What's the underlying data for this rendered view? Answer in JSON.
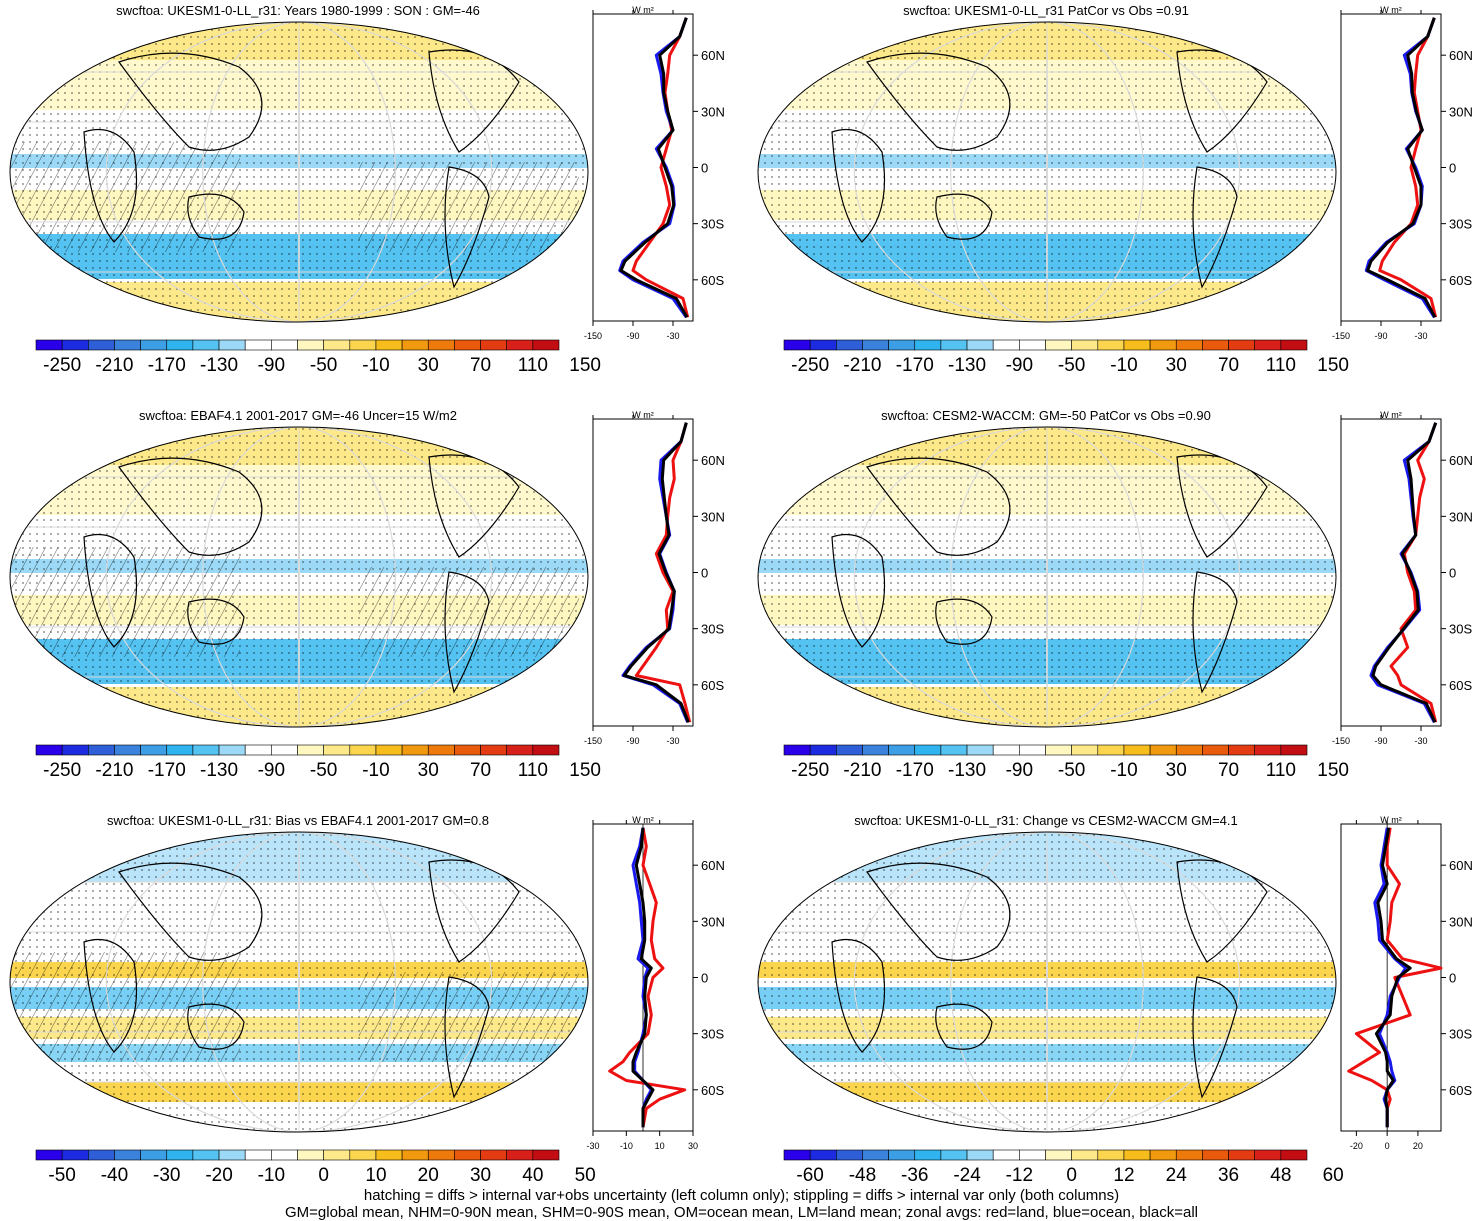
{
  "colors": {
    "scale": [
      "#2a00ea",
      "#1d2be0",
      "#2f5fd8",
      "#3a82db",
      "#3c9fe6",
      "#2fb4f0",
      "#55c3f2",
      "#9bd9f6",
      "#ffffff",
      "#ffffff",
      "#fff7c0",
      "#fde98a",
      "#fcd54e",
      "#f7bd1c",
      "#f29a0f",
      "#ef7a0c",
      "#ea5a0d",
      "#e33b12",
      "#d8201b",
      "#c20d13"
    ],
    "land_curve": "#ee1111",
    "ocean_curve": "#1a1aee",
    "all_curve": "#000000",
    "graticule": "#d9d9d9"
  },
  "chart_data": [
    {
      "panel": "A1",
      "type": "map_with_zonal_profile",
      "title": "swcftoa: UKESM1-0-LL_r31: Years 1980-1999 : SON : GM=-46",
      "colorbar_labels": [
        "-250",
        "-210",
        "-170",
        "-130",
        "-90",
        "-50",
        "-10",
        "30",
        "70",
        "110",
        "150"
      ],
      "profile_xticks": [
        "-150",
        "-90",
        "-30"
      ],
      "profile_xlim": [
        -150,
        0
      ],
      "units": "W m²",
      "lat_ticks": [
        "60N",
        "30N",
        "0",
        "30S",
        "60S"
      ],
      "zonal_mean": {
        "lat": [
          80,
          70,
          60,
          50,
          40,
          30,
          20,
          10,
          0,
          -10,
          -20,
          -30,
          -40,
          -50,
          -55,
          -60,
          -70,
          -80
        ],
        "land": [
          -10,
          -20,
          -35,
          -38,
          -42,
          -38,
          -32,
          -40,
          -48,
          -40,
          -35,
          -45,
          -65,
          -85,
          -90,
          -70,
          -15,
          -8
        ],
        "ocean": [
          -10,
          -20,
          -55,
          -48,
          -45,
          -40,
          -30,
          -55,
          -40,
          -30,
          -28,
          -35,
          -75,
          -105,
          -110,
          -90,
          -30,
          -10
        ],
        "all": [
          -10,
          -20,
          -50,
          -44,
          -44,
          -38,
          -30,
          -52,
          -42,
          -32,
          -29,
          -38,
          -72,
          -102,
          -108,
          -85,
          -25,
          -9
        ]
      }
    },
    {
      "panel": "B1",
      "type": "map_with_zonal_profile",
      "title": "swcftoa: UKESM1-0-LL_r31 PatCor vs Obs =0.91",
      "colorbar_labels": [
        "-250",
        "-210",
        "-170",
        "-130",
        "-90",
        "-50",
        "-10",
        "30",
        "70",
        "110",
        "150"
      ],
      "profile_xticks": [
        "-150",
        "-90",
        "-30"
      ],
      "profile_xlim": [
        -150,
        0
      ],
      "units": "W m²",
      "lat_ticks": [
        "60N",
        "30N",
        "0",
        "30S",
        "60S"
      ],
      "zonal_mean": {
        "lat": [
          80,
          70,
          60,
          50,
          40,
          30,
          20,
          10,
          0,
          -10,
          -20,
          -30,
          -40,
          -50,
          -55,
          -60,
          -70,
          -80
        ],
        "land": [
          -10,
          -20,
          -35,
          -38,
          -40,
          -35,
          -30,
          -38,
          -45,
          -38,
          -35,
          -45,
          -70,
          -88,
          -92,
          -60,
          -15,
          -8
        ],
        "ocean": [
          -10,
          -20,
          -55,
          -46,
          -44,
          -38,
          -28,
          -52,
          -38,
          -28,
          -30,
          -40,
          -82,
          -108,
          -112,
          -85,
          -28,
          -10
        ],
        "all": [
          -10,
          -20,
          -50,
          -44,
          -43,
          -37,
          -28,
          -50,
          -40,
          -30,
          -30,
          -42,
          -80,
          -105,
          -110,
          -80,
          -24,
          -9
        ]
      }
    },
    {
      "panel": "A2",
      "type": "map_with_zonal_profile",
      "title": "swcftoa: EBAF4.1 2001-2017 GM=-46 Uncer=15 W/m2",
      "colorbar_labels": [
        "-250",
        "-210",
        "-170",
        "-130",
        "-90",
        "-50",
        "-10",
        "30",
        "70",
        "110",
        "150"
      ],
      "profile_xticks": [
        "-150",
        "-90",
        "-30"
      ],
      "profile_xlim": [
        -150,
        0
      ],
      "units": "W m²",
      "lat_ticks": [
        "60N",
        "30N",
        "0",
        "30S",
        "60S"
      ],
      "zonal_mean": {
        "lat": [
          80,
          70,
          60,
          50,
          40,
          30,
          20,
          10,
          0,
          -10,
          -20,
          -30,
          -40,
          -50,
          -55,
          -60,
          -70,
          -80
        ],
        "land": [
          -10,
          -18,
          -30,
          -28,
          -35,
          -38,
          -40,
          -55,
          -45,
          -30,
          -40,
          -38,
          -55,
          -75,
          -85,
          -20,
          -12,
          -5
        ],
        "ocean": [
          -10,
          -18,
          -48,
          -50,
          -45,
          -40,
          -35,
          -50,
          -40,
          -28,
          -30,
          -35,
          -70,
          -95,
          -105,
          -60,
          -20,
          -8
        ],
        "all": [
          -10,
          -18,
          -44,
          -46,
          -43,
          -40,
          -36,
          -51,
          -41,
          -28,
          -32,
          -36,
          -68,
          -93,
          -103,
          -55,
          -18,
          -7
        ]
      }
    },
    {
      "panel": "B2",
      "type": "map_with_zonal_profile",
      "title": "swcftoa: CESM2-WACCM: GM=-50 PatCor vs Obs =0.90",
      "colorbar_labels": [
        "-250",
        "-210",
        "-170",
        "-130",
        "-90",
        "-50",
        "-10",
        "30",
        "70",
        "110",
        "150"
      ],
      "profile_xticks": [
        "-150",
        "-90",
        "-30"
      ],
      "profile_xlim": [
        -150,
        0
      ],
      "units": "W m²",
      "lat_ticks": [
        "60N",
        "30N",
        "0",
        "30S",
        "60S"
      ],
      "zonal_mean": {
        "lat": [
          80,
          70,
          60,
          50,
          40,
          30,
          20,
          10,
          0,
          -10,
          -20,
          -30,
          -40,
          -50,
          -55,
          -60,
          -70,
          -80
        ],
        "land": [
          -8,
          -18,
          -35,
          -25,
          -32,
          -35,
          -38,
          -55,
          -50,
          -40,
          -38,
          -60,
          -50,
          -75,
          -65,
          -60,
          -15,
          -8
        ],
        "ocean": [
          -8,
          -18,
          -55,
          -48,
          -45,
          -42,
          -38,
          -60,
          -45,
          -35,
          -32,
          -55,
          -80,
          -100,
          -105,
          -95,
          -25,
          -10
        ],
        "all": [
          -8,
          -18,
          -50,
          -45,
          -43,
          -41,
          -38,
          -58,
          -46,
          -36,
          -34,
          -56,
          -78,
          -98,
          -102,
          -90,
          -22,
          -9
        ]
      }
    },
    {
      "panel": "A3",
      "type": "map_with_zonal_profile",
      "title": "swcftoa: UKESM1-0-LL_r31: Bias vs EBAF4.1 2001-2017  GM=0.8",
      "colorbar_labels": [
        "-50",
        "-40",
        "-30",
        "-20",
        "-10",
        "0",
        "10",
        "20",
        "30",
        "40",
        "50"
      ],
      "profile_xticks": [
        "-30",
        "-10",
        "10",
        "30"
      ],
      "profile_xlim": [
        -30,
        30
      ],
      "units": "W m²",
      "lat_ticks": [
        "60N",
        "30N",
        "0",
        "30S",
        "60S"
      ],
      "zonal_mean": {
        "lat": [
          80,
          70,
          60,
          50,
          40,
          30,
          20,
          10,
          5,
          0,
          -10,
          -20,
          -30,
          -40,
          -45,
          -50,
          -55,
          -60,
          -65,
          -70,
          -80
        ],
        "land": [
          0,
          2,
          0,
          4,
          8,
          6,
          5,
          7,
          12,
          6,
          3,
          5,
          3,
          -8,
          -12,
          -20,
          -10,
          25,
          10,
          2,
          0
        ],
        "ocean": [
          0,
          -2,
          -6,
          -4,
          -2,
          -1,
          0,
          -3,
          3,
          1,
          0,
          2,
          0,
          -3,
          -5,
          -5,
          0,
          5,
          2,
          0,
          0
        ],
        "all": [
          0,
          -1,
          -4,
          -2,
          0,
          1,
          1,
          -1,
          5,
          2,
          1,
          2,
          1,
          -4,
          -6,
          -6,
          0,
          6,
          3,
          0,
          0
        ]
      }
    },
    {
      "panel": "B3",
      "type": "map_with_zonal_profile",
      "title": "swcftoa: UKESM1-0-LL_r31: Change vs CESM2-WACCM GM=4.1",
      "colorbar_labels": [
        "-60",
        "-48",
        "-36",
        "-24",
        "-12",
        "0",
        "12",
        "24",
        "36",
        "48",
        "60"
      ],
      "profile_xticks": [
        "-20",
        "0",
        "20"
      ],
      "profile_xlim": [
        -30,
        35
      ],
      "units": "W m²",
      "lat_ticks": [
        "60N",
        "30N",
        "0",
        "30S",
        "60S"
      ],
      "zonal_mean": {
        "lat": [
          80,
          70,
          60,
          50,
          40,
          30,
          20,
          10,
          5,
          0,
          -10,
          -20,
          -30,
          -40,
          -45,
          -50,
          -55,
          -60,
          -65,
          -70,
          -80
        ],
        "land": [
          2,
          0,
          0,
          8,
          3,
          2,
          0,
          10,
          35,
          5,
          10,
          15,
          -20,
          -5,
          -15,
          -25,
          -10,
          0,
          2,
          0,
          0
        ],
        "ocean": [
          0,
          -2,
          -4,
          -2,
          -8,
          -6,
          -5,
          5,
          12,
          8,
          2,
          0,
          -5,
          0,
          2,
          3,
          5,
          0,
          -2,
          0,
          0
        ],
        "all": [
          1,
          -1,
          -3,
          0,
          -6,
          -4,
          -3,
          6,
          15,
          7,
          3,
          2,
          -7,
          -1,
          0,
          0,
          4,
          0,
          -1,
          0,
          0
        ]
      }
    }
  ],
  "footer": {
    "line1": "hatching = diffs > internal var+obs uncertainty (left column only); stippling = diffs > internal var only (both columns)",
    "line2": "GM=global mean, NHM=0-90N mean, SHM=0-90S mean, OM=ocean mean, LM=land mean; zonal avgs: red=land, blue=ocean, black=all"
  }
}
